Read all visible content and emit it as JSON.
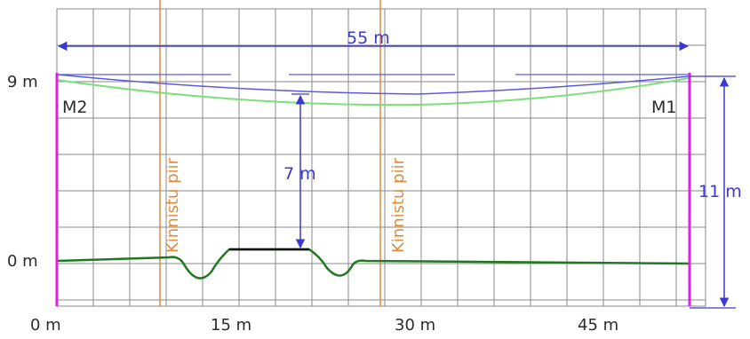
{
  "profile": {
    "span_label": "55 m",
    "sag_label": "7 m",
    "height_label": "11 m",
    "mast_left": "M2",
    "mast_right": "M1",
    "boundary_label": "Kinnistu piir",
    "y_labels": [
      "9 m",
      "0 m"
    ],
    "x_labels": [
      "0 m",
      "15 m",
      "30 m",
      "45 m"
    ],
    "colors": {
      "grid": "#8a8a8a",
      "mast": "#e020e0",
      "dimension": "#3a3ad0",
      "conductor_upper": "#5a5ae0",
      "conductor_lower": "#7be07b",
      "ground": "#1f7a1f",
      "road": "#111111",
      "boundary": "#e08a3a"
    }
  }
}
